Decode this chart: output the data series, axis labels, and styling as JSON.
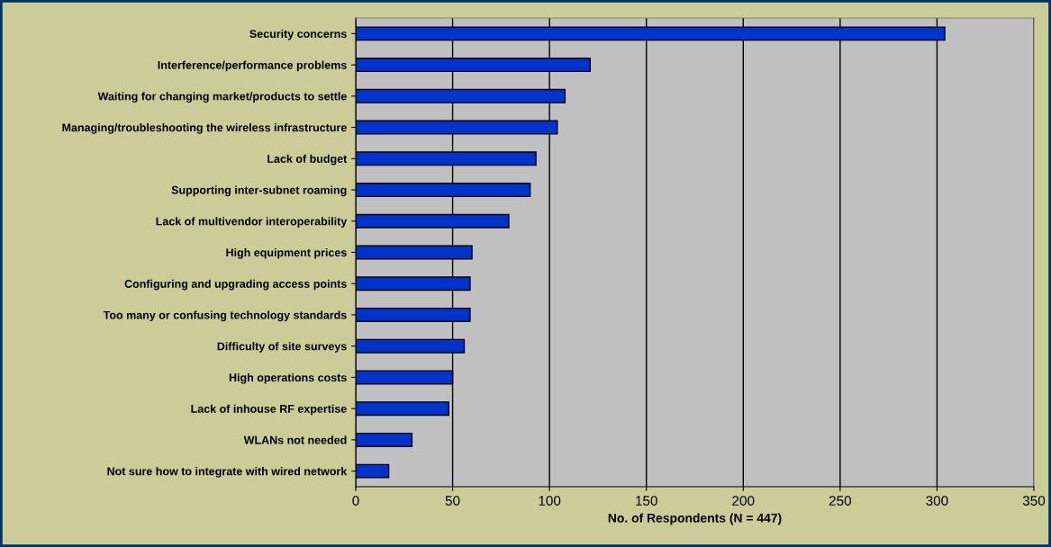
{
  "chart_data": {
    "type": "bar",
    "orientation": "horizontal",
    "xlabel": "No. of Respondents (N = 447)",
    "categories": [
      "Security concerns",
      "Interference/performance problems",
      "Waiting for changing market/products to settle",
      "Managing/troubleshooting the wireless infrastructure",
      "Lack of budget",
      "Supporting inter-subnet roaming",
      "Lack of multivendor interoperability",
      "High equipment prices",
      "Configuring and upgrading access points",
      "Too many or confusing technology standards",
      "Difficulty of site surveys",
      "High operations costs",
      "Lack of inhouse RF expertise",
      "WLANs not needed",
      "Not sure how to integrate with wired network"
    ],
    "values": [
      304,
      121,
      108,
      104,
      93,
      90,
      79,
      60,
      59,
      59,
      56,
      50,
      48,
      29,
      17
    ],
    "color": "#0033cc",
    "xlim": [
      0,
      350
    ],
    "xticks": [
      0,
      50,
      100,
      150,
      200,
      250,
      300,
      350
    ],
    "grid": "x"
  }
}
